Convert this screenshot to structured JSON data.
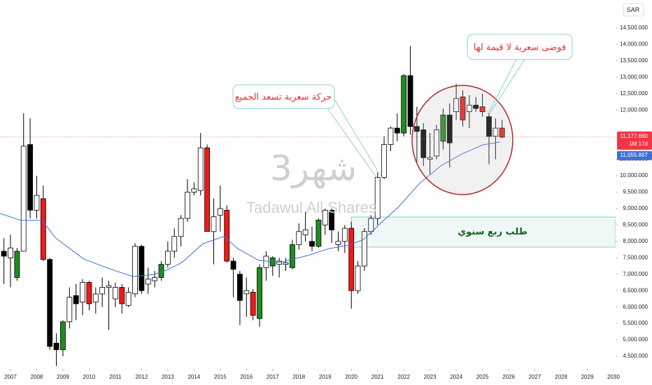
{
  "chart_data": {
    "type": "candlestick",
    "currency": "SAR",
    "watermark": {
      "interval": "شهر3",
      "symbol": "Tadawul All Shares"
    },
    "annotations": [
      "حركة سعرية تسعد الجميع",
      "فوضى سعرية لا قيمة لها"
    ],
    "zone": {
      "label": "طلب ربع سنوي",
      "x": 2020.0,
      "range": [
        7826,
        8743
      ],
      "color": "#1e9e8e"
    },
    "xlim": [
      2006.6,
      2030.08
    ],
    "xticks": [
      2007,
      2008,
      2009,
      2010,
      2011,
      2012,
      2013,
      2014,
      2015,
      2016,
      2017,
      2018,
      2019,
      2020,
      2021,
      2022,
      2023,
      2024,
      2025,
      2026,
      2027,
      2028,
      2029,
      2030
    ],
    "ylim": [
      4116,
      15353
    ],
    "yticks": [
      {
        "value": 14500,
        "label": "14,500.000"
      },
      {
        "value": 14000,
        "label": "14,000.000"
      },
      {
        "value": 13500,
        "label": "13,500.000"
      },
      {
        "value": 13000,
        "label": "13,000.000"
      },
      {
        "value": 12500,
        "label": "12,500.000"
      },
      {
        "value": 12000,
        "label": "12,000.000"
      },
      {
        "value": 10500,
        "label": "10,500.000"
      },
      {
        "value": 10000,
        "label": "10,000.000"
      },
      {
        "value": 9500,
        "label": "9,500.000"
      },
      {
        "value": 9000,
        "label": "9,000.000"
      },
      {
        "value": 8500,
        "label": "8,500.000"
      },
      {
        "value": 8000,
        "label": "8,000.000"
      },
      {
        "value": 7500,
        "label": "7,500.000"
      },
      {
        "value": 7000,
        "label": "7,000.000"
      },
      {
        "value": 6500,
        "label": "6,500.000"
      },
      {
        "value": 6000,
        "label": "6,000.000"
      },
      {
        "value": 5500,
        "label": "5,500.000"
      },
      {
        "value": 5000,
        "label": "5,000.000"
      },
      {
        "value": 4500,
        "label": "4,500.000"
      }
    ],
    "last_price": {
      "value": 11177.66,
      "label": "11,177.660",
      "countdown": "1M 17d",
      "color": "#f23645"
    },
    "x": [
      2006.75,
      2007,
      2007.25,
      2007.5,
      2007.75,
      2008,
      2008.25,
      2008.5,
      2008.75,
      2009,
      2009.25,
      2009.5,
      2009.75,
      2010,
      2010.25,
      2010.5,
      2010.75,
      2011,
      2011.25,
      2011.5,
      2011.75,
      2012,
      2012.25,
      2012.5,
      2012.75,
      2013,
      2013.25,
      2013.5,
      2013.75,
      2014,
      2014.25,
      2014.5,
      2014.75,
      2015,
      2015.25,
      2015.5,
      2015.75,
      2016,
      2016.25,
      2016.5,
      2016.75,
      2017,
      2017.25,
      2017.5,
      2017.75,
      2018,
      2018.25,
      2018.5,
      2018.75,
      2019,
      2019.25,
      2019.5,
      2019.75,
      2020,
      2020.25,
      2020.5,
      2020.75,
      2021,
      2021.25,
      2021.5,
      2021.75,
      2022,
      2022.25,
      2022.5,
      2022.75,
      2023,
      2023.25,
      2023.5,
      2023.75,
      2024,
      2024.25,
      2024.5,
      2024.75,
      2025,
      2025.25,
      2025.5,
      2025.75
    ],
    "open": [
      7700,
      7500,
      6900,
      7700,
      10950,
      8950,
      9300,
      7450,
      4900,
      4700,
      5550,
      6350,
      6150,
      6750,
      6150,
      6400,
      6600,
      6250,
      6600,
      6050,
      6400,
      7850,
      6700,
      6800,
      6900,
      7300,
      7700,
      8150,
      8700,
      9500,
      9550,
      10850,
      8300,
      8800,
      8950,
      7400,
      7000,
      6400,
      6450,
      5650,
      7200,
      7250,
      7300,
      7300,
      7200,
      7900,
      8200,
      8000,
      7850,
      8500,
      8950,
      7900,
      8000,
      8400,
      6500,
      7250,
      8300,
      8700,
      9950,
      10950,
      11450,
      11300,
      13050,
      11500,
      11400,
      10550,
      10600,
      11050,
      11850,
      11950,
      12400,
      11950,
      12150,
      12100,
      11800,
      11200,
      11450
    ],
    "high": [
      8100,
      8200,
      7800,
      11900,
      11750,
      10000,
      9700,
      7500,
      5200,
      5600,
      6600,
      6700,
      6850,
      6800,
      6600,
      6900,
      6800,
      6750,
      6700,
      6600,
      7950,
      7900,
      7200,
      7100,
      7400,
      8000,
      8400,
      8800,
      9900,
      9800,
      11300,
      10950,
      9300,
      9700,
      9100,
      7500,
      7100,
      6900,
      6550,
      7300,
      7700,
      7550,
      7500,
      7500,
      8050,
      8550,
      8900,
      8450,
      8700,
      9000,
      9000,
      8300,
      8500,
      8600,
      7400,
      8400,
      8800,
      10100,
      11200,
      11500,
      11900,
      13100,
      13950,
      12100,
      11600,
      11300,
      11550,
      12050,
      12200,
      12800,
      12600,
      12450,
      12400,
      12500,
      11900,
      11750,
      11700
    ],
    "low": [
      6700,
      6600,
      6800,
      7700,
      8700,
      8700,
      7400,
      4700,
      4200,
      4500,
      5350,
      5600,
      5750,
      5900,
      5800,
      6000,
      5300,
      6000,
      5800,
      6000,
      6300,
      6400,
      6400,
      6600,
      6800,
      7200,
      7500,
      7850,
      8600,
      9400,
      9400,
      8300,
      7300,
      8300,
      7350,
      6300,
      5450,
      5700,
      5600,
      5400,
      6800,
      6950,
      6900,
      7100,
      7150,
      7750,
      8000,
      7700,
      7800,
      8200,
      7950,
      7700,
      7650,
      5950,
      6400,
      7100,
      8200,
      8500,
      9900,
      10750,
      11050,
      11200,
      11250,
      10400,
      10300,
      10050,
      10500,
      10800,
      10250,
      11700,
      11500,
      11450,
      11950,
      11800,
      10350,
      10500,
      11150
    ],
    "close": [
      7550,
      7800,
      7700,
      10900,
      8950,
      9400,
      7450,
      4800,
      4700,
      5550,
      6300,
      6100,
      6750,
      6100,
      6400,
      6600,
      6650,
      6600,
      6100,
      6450,
      7850,
      6500,
      6850,
      6900,
      7300,
      7700,
      8150,
      8700,
      9500,
      9600,
      10850,
      8300,
      8750,
      9000,
      7400,
      7150,
      6200,
      6500,
      5750,
      7200,
      7550,
      7500,
      7400,
      7350,
      7900,
      8300,
      8350,
      7850,
      8650,
      8950,
      8350,
      8000,
      8400,
      6500,
      7250,
      8300,
      8700,
      9950,
      10950,
      11450,
      11300,
      13050,
      11500,
      11350,
      10550,
      10500,
      11400,
      11850,
      11000,
      12350,
      11700,
      12150,
      12050,
      11950,
      11200,
      11450,
      11177.66
    ],
    "colors": [
      "#000000",
      "#ffffff",
      "#1e8c1e",
      "#ffffff",
      "#000000",
      "#ffffff",
      "#f21818",
      "#000000",
      "#000000",
      "#1e8c1e",
      "#ffffff",
      "#000000",
      "#ffffff",
      "#f21818",
      "#ffffff",
      "#ffffff",
      "#ffffff",
      "#ffffff",
      "#f21818",
      "#ffffff",
      "#ffffff",
      "#000000",
      "#ffffff",
      "#ffffff",
      "#1e8c1e",
      "#ffffff",
      "#ffffff",
      "#ffffff",
      "#ffffff",
      "#ffffff",
      "#ffffff",
      "#f21818",
      "#ffffff",
      "#ffffff",
      "#f21818",
      "#000000",
      "#000000",
      "#ffffff",
      "#f21818",
      "#1e8c1e",
      "#ffffff",
      "#1e8c1e",
      "#ffffff",
      "#ffffff",
      "#1e8c1e",
      "#ffffff",
      "#ffffff",
      "#000000",
      "#1e8c1e",
      "#ffffff",
      "#000000",
      "#ffffff",
      "#ffffff",
      "#f21818",
      "#ffffff",
      "#ffffff",
      "#ffffff",
      "#ffffff",
      "#ffffff",
      "#ffffff",
      "#000000",
      "#1e8c1e",
      "#000000",
      "#000000",
      "#000000",
      "#ffffff",
      "#ffffff",
      "#1e8c1e",
      "#000000",
      "#ffffff",
      "#f21818",
      "#ffffff",
      "#000000",
      "#f21818",
      "#000000",
      "#ffffff",
      "#f21818"
    ],
    "ma": {
      "color": "#3d6fd8",
      "last": {
        "value": 11055.867,
        "label": "11,055.867"
      },
      "x": [
        2006.6,
        2007.4,
        2008.2,
        2008.73,
        2009.8,
        2010.87,
        2011.67,
        2012.47,
        2013.0,
        2013.54,
        2014.34,
        2015.14,
        2015.67,
        2016.47,
        2017.27,
        2018.34,
        2019.14,
        2019.94,
        2020.47,
        2021.14,
        2021.81,
        2022.61,
        2023.41,
        2024.21,
        2025.01,
        2025.68
      ],
      "values": [
        8850,
        8640,
        8640,
        8100,
        7460,
        7140,
        6930,
        6990,
        7140,
        7360,
        7930,
        8150,
        7780,
        7420,
        7360,
        7570,
        7780,
        7890,
        8060,
        8570,
        9060,
        9770,
        10300,
        10660,
        10940,
        11030
      ]
    }
  }
}
